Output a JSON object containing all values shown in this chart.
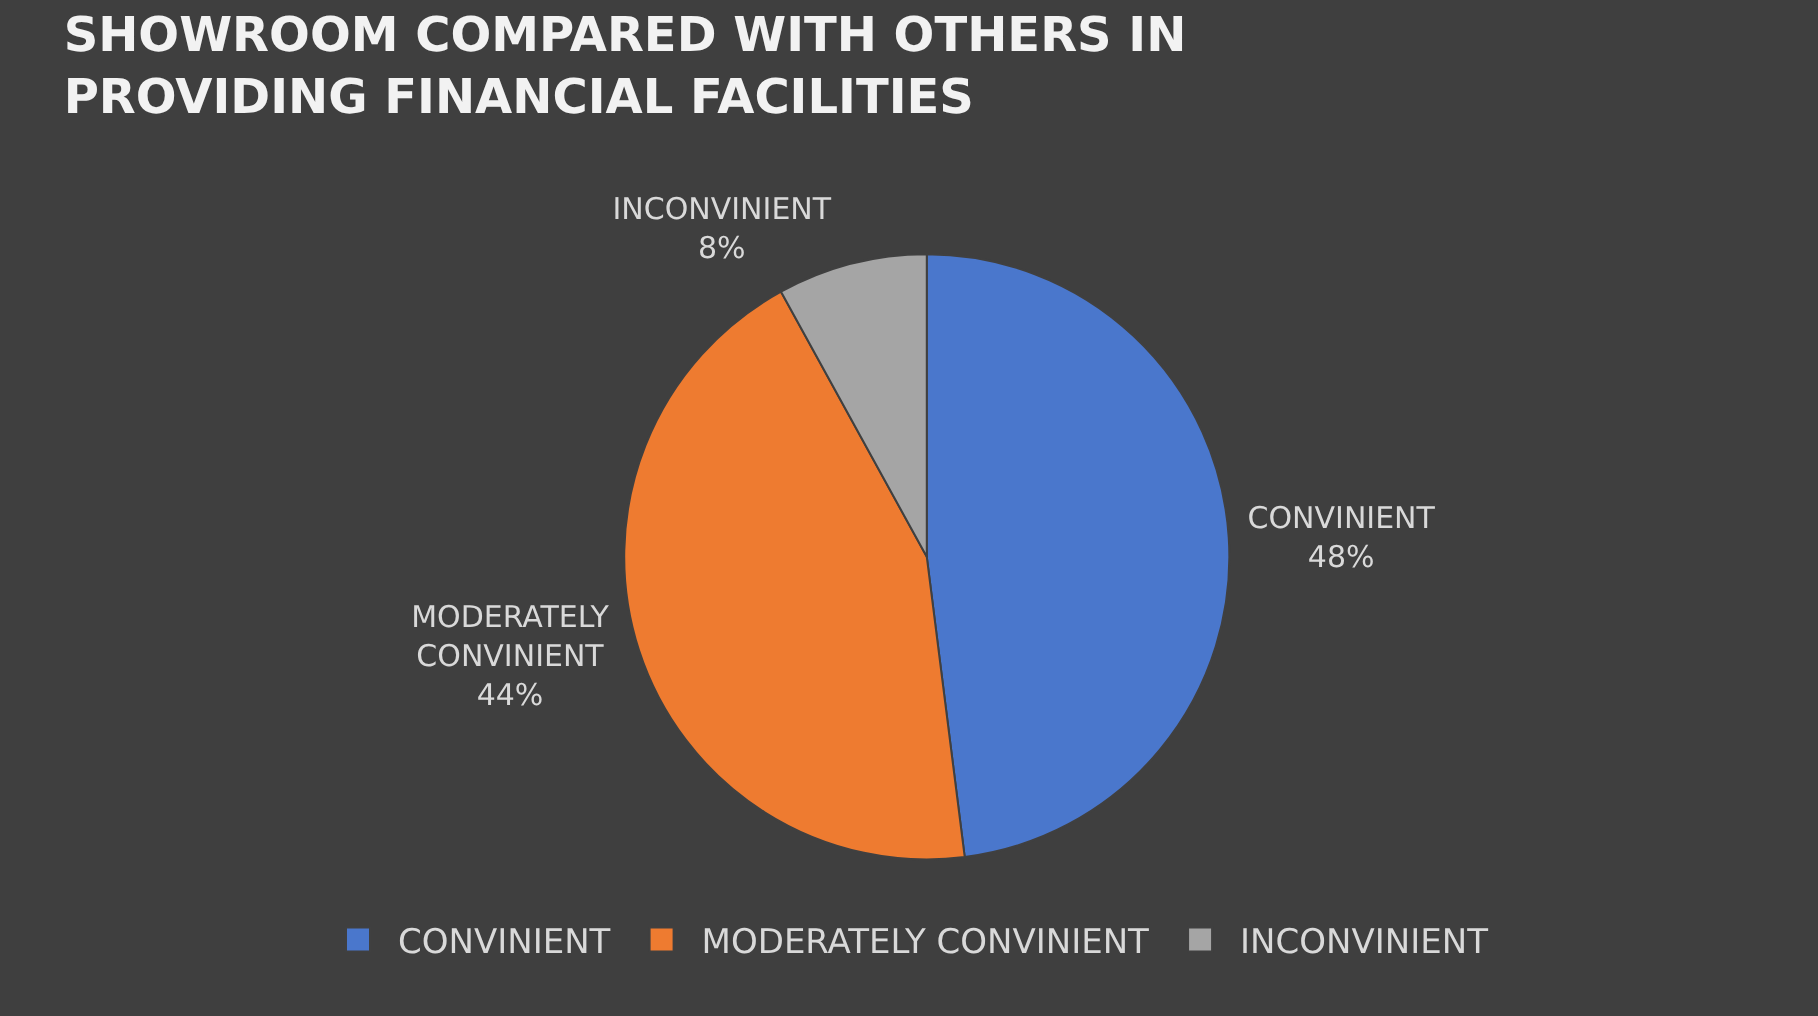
{
  "chart_data": {
    "type": "pie",
    "title": "SHOWROOM COMPARED WITH OTHERS IN PROVIDING FINANCIAL FACILITIES",
    "categories": [
      "CONVINIENT",
      "MODERATELY CONVINIENT",
      "INCONVINIENT"
    ],
    "values": [
      48,
      44,
      8
    ],
    "value_labels": [
      "48%",
      "44%",
      "8%"
    ],
    "colors": [
      "#4a77cc",
      "#ee7b30",
      "#a5a5a5"
    ],
    "legend": "bottom"
  }
}
